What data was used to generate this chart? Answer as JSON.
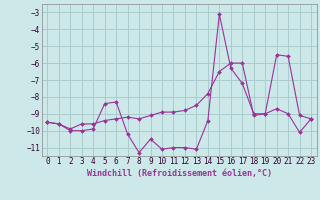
{
  "xlabel": "Windchill (Refroidissement éolien,°C)",
  "background_color": "#cce8e8",
  "grid_color": "#aacccc",
  "line_color": "#993399",
  "xlim": [
    -0.5,
    23.5
  ],
  "ylim": [
    -11.5,
    -2.5
  ],
  "yticks": [
    -11,
    -10,
    -9,
    -8,
    -7,
    -6,
    -5,
    -4,
    -3
  ],
  "xticks": [
    0,
    1,
    2,
    3,
    4,
    5,
    6,
    7,
    8,
    9,
    10,
    11,
    12,
    13,
    14,
    15,
    16,
    17,
    18,
    19,
    20,
    21,
    22,
    23
  ],
  "line1_x": [
    0,
    1,
    2,
    3,
    4,
    5,
    6,
    7,
    8,
    9,
    10,
    11,
    12,
    13,
    14,
    15,
    16,
    17,
    18,
    19,
    20,
    21,
    22,
    23
  ],
  "line1_y": [
    -9.5,
    -9.6,
    -10.0,
    -10.0,
    -9.9,
    -8.4,
    -8.3,
    -10.2,
    -11.3,
    -10.5,
    -11.1,
    -11.0,
    -11.0,
    -11.1,
    -9.4,
    -3.1,
    -6.3,
    -7.2,
    -9.0,
    -9.0,
    -8.7,
    -9.0,
    -10.1,
    -9.3
  ],
  "line2_x": [
    0,
    1,
    2,
    3,
    4,
    5,
    6,
    7,
    8,
    9,
    10,
    11,
    12,
    13,
    14,
    15,
    16,
    17,
    18,
    19,
    20,
    21,
    22,
    23
  ],
  "line2_y": [
    -9.5,
    -9.6,
    -9.9,
    -9.6,
    -9.6,
    -9.4,
    -9.3,
    -9.2,
    -9.3,
    -9.1,
    -8.9,
    -8.9,
    -8.8,
    -8.5,
    -7.8,
    -6.5,
    -6.0,
    -6.0,
    -9.1,
    -9.0,
    -5.5,
    -5.6,
    -9.1,
    -9.3
  ],
  "tick_fontsize": 5.5,
  "xlabel_fontsize": 6.0
}
